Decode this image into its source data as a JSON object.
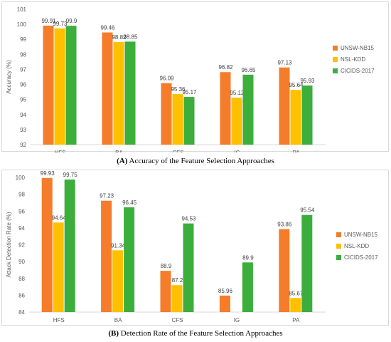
{
  "chart_data": [
    {
      "type": "bar",
      "categories": [
        "HFS",
        "BA",
        "CFS",
        "IG",
        "PA"
      ],
      "series": [
        {
          "name": "UNSW-NB15",
          "color": "#f57c2a",
          "values": [
            99.91,
            99.46,
            96.09,
            96.82,
            97.13
          ]
        },
        {
          "name": "NSL-KDD",
          "color": "#ffc000",
          "values": [
            99.73,
            98.82,
            95.36,
            95.12,
            95.64
          ]
        },
        {
          "name": "CICIDS-2017",
          "color": "#3cae3c",
          "values": [
            99.9,
            98.85,
            95.17,
            96.65,
            95.93
          ]
        }
      ],
      "ylabel": "Accuracy (%)",
      "ylim": [
        92,
        101
      ],
      "yticks": [
        92,
        93,
        94,
        95,
        96,
        97,
        98,
        99,
        100,
        101
      ],
      "legend_position": "right",
      "grid": false
    },
    {
      "type": "bar",
      "categories": [
        "HFS",
        "BA",
        "CFS",
        "IG",
        "PA"
      ],
      "series": [
        {
          "name": "UNSW-NB15",
          "color": "#f57c2a",
          "values": [
            99.93,
            97.23,
            88.9,
            85.96,
            93.86
          ]
        },
        {
          "name": "NSL-KDD",
          "color": "#ffc000",
          "values": [
            94.64,
            91.34,
            87.2,
            null,
            85.67
          ]
        },
        {
          "name": "CICIDS-2017",
          "color": "#3cae3c",
          "values": [
            99.75,
            96.45,
            94.53,
            89.9,
            95.54
          ]
        }
      ],
      "ylabel": "Attack Detection Rate (%)",
      "ylim": [
        84,
        100
      ],
      "yticks": [
        84,
        86,
        88,
        90,
        92,
        94,
        96,
        98,
        100
      ],
      "legend_position": "right",
      "grid": false
    }
  ],
  "captions": {
    "a_label": "(A)",
    "a_text": "Accuracy of the Feature Selection Approaches",
    "b_label": "(B)",
    "b_text": "Detection Rate of the Feature Selection Approaches"
  }
}
